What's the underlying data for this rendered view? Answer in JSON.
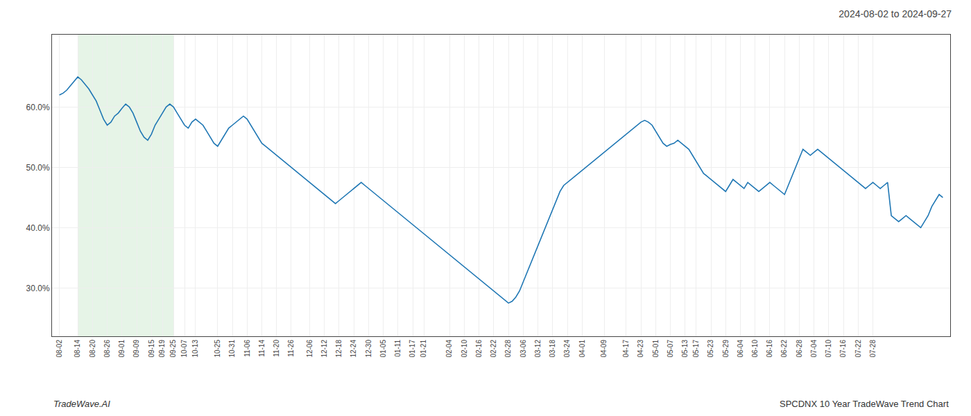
{
  "chart_data": {
    "type": "line",
    "title": "2024-08-02 to 2024-09-27",
    "annotations": [
      "TradeWave.AI",
      "SPCDNX 10 Year TradeWave Trend Chart"
    ],
    "categories": [
      "08-02",
      null,
      null,
      null,
      null,
      "08-14",
      null,
      null,
      null,
      "08-20",
      null,
      null,
      null,
      "08-26",
      null,
      null,
      null,
      "09-01",
      null,
      null,
      null,
      "09-09",
      null,
      null,
      null,
      "09-15",
      null,
      null,
      "09-19",
      null,
      null,
      "09-25",
      null,
      null,
      "10-07",
      null,
      null,
      "10-13",
      null,
      null,
      null,
      null,
      null,
      "10-25",
      null,
      null,
      null,
      "10-31",
      null,
      null,
      null,
      "11-06",
      null,
      null,
      null,
      "11-14",
      null,
      null,
      null,
      "11-20",
      null,
      null,
      null,
      "11-26",
      null,
      null,
      null,
      null,
      "12-06",
      null,
      null,
      null,
      "12-12",
      null,
      null,
      null,
      "12-18",
      null,
      null,
      null,
      "12-24",
      null,
      null,
      null,
      "12-30",
      null,
      null,
      null,
      "01-05",
      null,
      null,
      null,
      "01-11",
      null,
      null,
      null,
      "01-17",
      null,
      null,
      "01-21",
      null,
      null,
      null,
      null,
      null,
      null,
      "02-04",
      null,
      null,
      null,
      "02-10",
      null,
      null,
      null,
      "02-16",
      null,
      null,
      null,
      "02-22",
      null,
      null,
      null,
      "02-28",
      null,
      null,
      null,
      "03-06",
      null,
      null,
      null,
      "03-12",
      null,
      null,
      null,
      "03-18",
      null,
      null,
      null,
      "03-24",
      null,
      null,
      null,
      "04-01",
      null,
      null,
      null,
      null,
      null,
      "04-09",
      null,
      null,
      null,
      null,
      null,
      "04-17",
      null,
      null,
      null,
      "04-23",
      null,
      null,
      null,
      "05-01",
      null,
      null,
      null,
      "05-07",
      null,
      null,
      null,
      "05-13",
      null,
      null,
      "05-17",
      null,
      null,
      null,
      "05-23",
      null,
      null,
      null,
      "05-29",
      null,
      null,
      null,
      "06-04",
      null,
      null,
      null,
      "06-10",
      null,
      null,
      null,
      "06-16",
      null,
      null,
      null,
      "06-22",
      null,
      null,
      null,
      "06-28",
      null,
      null,
      null,
      "07-04",
      null,
      null,
      null,
      "07-10",
      null,
      null,
      null,
      "07-16",
      null,
      null,
      null,
      "07-22",
      null,
      null,
      null,
      "07-28",
      null,
      null,
      null,
      null,
      null,
      null,
      null,
      null,
      null,
      null,
      null,
      null,
      null,
      null,
      null,
      null,
      null,
      null,
      null
    ],
    "values": [
      62.0,
      62.3,
      62.8,
      63.5,
      64.2,
      65.0,
      64.5,
      63.8,
      63.0,
      62.0,
      61.0,
      59.5,
      58.0,
      57.0,
      57.5,
      58.5,
      59.0,
      59.8,
      60.5,
      60.0,
      59.0,
      57.5,
      56.0,
      55.0,
      54.5,
      55.5,
      57.0,
      58.0,
      59.0,
      60.0,
      60.5,
      60.0,
      59.0,
      58.0,
      57.0,
      56.5,
      57.5,
      58.0,
      57.5,
      57.0,
      56.0,
      55.0,
      54.0,
      53.5,
      54.5,
      55.5,
      56.5,
      57.0,
      57.5,
      58.0,
      58.5,
      58.0,
      57.0,
      56.0,
      55.0,
      54.0,
      53.5,
      53.0,
      52.5,
      52.0,
      51.5,
      51.0,
      50.5,
      50.0,
      49.5,
      49.0,
      48.5,
      48.0,
      47.5,
      47.0,
      46.5,
      46.0,
      45.5,
      45.0,
      44.5,
      44.0,
      44.5,
      45.0,
      45.5,
      46.0,
      46.5,
      47.0,
      47.5,
      47.0,
      46.5,
      46.0,
      45.5,
      45.0,
      44.5,
      44.0,
      43.5,
      43.0,
      42.5,
      42.0,
      41.5,
      41.0,
      40.5,
      40.0,
      39.5,
      39.0,
      38.5,
      38.0,
      37.5,
      37.0,
      36.5,
      36.0,
      35.5,
      35.0,
      34.5,
      34.0,
      33.5,
      33.0,
      32.5,
      32.0,
      31.5,
      31.0,
      30.5,
      30.0,
      29.5,
      29.0,
      28.5,
      28.0,
      27.5,
      27.8,
      28.5,
      29.5,
      31.0,
      32.5,
      34.0,
      35.5,
      37.0,
      38.5,
      40.0,
      41.5,
      43.0,
      44.5,
      46.0,
      47.0,
      47.5,
      48.0,
      48.5,
      49.0,
      49.5,
      50.0,
      50.5,
      51.0,
      51.5,
      52.0,
      52.5,
      53.0,
      53.5,
      54.0,
      54.5,
      55.0,
      55.5,
      56.0,
      56.5,
      57.0,
      57.5,
      57.8,
      57.5,
      57.0,
      56.0,
      55.0,
      54.0,
      53.5,
      53.8,
      54.0,
      54.5,
      54.0,
      53.5,
      53.0,
      52.0,
      51.0,
      50.0,
      49.0,
      48.5,
      48.0,
      47.5,
      47.0,
      46.5,
      46.0,
      47.0,
      48.0,
      47.5,
      47.0,
      46.5,
      47.5,
      47.0,
      46.5,
      46.0,
      46.5,
      47.0,
      47.5,
      47.0,
      46.5,
      46.0,
      45.5,
      47.0,
      48.5,
      50.0,
      51.5,
      53.0,
      52.5,
      52.0,
      52.5,
      53.0,
      52.5,
      52.0,
      51.5,
      51.0,
      50.5,
      50.0,
      49.5,
      49.0,
      48.5,
      48.0,
      47.5,
      47.0,
      46.5,
      47.0,
      47.5,
      47.0,
      46.5,
      47.0,
      47.5,
      42.0,
      41.5,
      41.0,
      41.5,
      42.0,
      41.5,
      41.0,
      40.5,
      40.0,
      41.0,
      42.0,
      43.5,
      44.5,
      45.5,
      45.0
    ],
    "xlim": [
      -2,
      242
    ],
    "ylim": [
      22,
      72
    ],
    "yticks": [
      {
        "value": 30.0,
        "label": "30.0%"
      },
      {
        "value": 40.0,
        "label": "40.0%"
      },
      {
        "value": 50.0,
        "label": "50.0%"
      },
      {
        "value": 60.0,
        "label": "60.0%"
      }
    ],
    "grid": true,
    "spans": [
      {
        "from": "08-14",
        "to": "09-25",
        "color": "#c8e6c9"
      }
    ]
  }
}
